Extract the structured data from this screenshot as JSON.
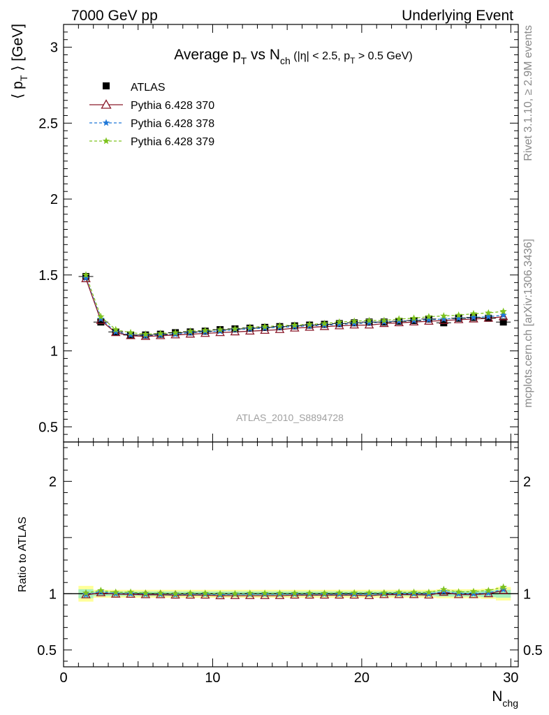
{
  "header": {
    "left": "7000 GeV pp",
    "right": "Underlying Event"
  },
  "side": {
    "rivet": "Rivet 3.1.10, ≥ 2.9M events",
    "mcplots": "mcplots.cern.ch [arXiv:1306.3436]"
  },
  "chart_data": [
    {
      "type": "scatter",
      "panel": "main",
      "title": {
        "main": "Average p",
        "main_sub": "T",
        "vs": " vs N",
        "vs_sub": "ch",
        "cut": " (|η| < 2.5, p",
        "cut_sub": "T",
        "cut_end": " > 0.5 GeV)"
      },
      "ylabel": {
        "pre": "⟨ p",
        "sub": "T",
        "post": " ⟩ [GeV]"
      },
      "xlim": [
        0,
        30.5
      ],
      "ylim": [
        0.4,
        3.15
      ],
      "yticks": [
        0.5,
        1,
        1.5,
        2,
        2.5,
        3
      ],
      "ytick_labels": [
        "0.5",
        "1",
        "1.5",
        "2",
        "2.5",
        "3"
      ],
      "watermark": "ATLAS_2010_S8894728",
      "x": [
        1.5,
        2.5,
        3.5,
        4.5,
        5.5,
        6.5,
        7.5,
        8.5,
        9.5,
        10.5,
        11.5,
        12.5,
        13.5,
        14.5,
        15.5,
        16.5,
        17.5,
        18.5,
        19.5,
        20.5,
        21.5,
        22.5,
        23.5,
        24.5,
        25.5,
        26.5,
        27.5,
        28.5,
        29.5
      ],
      "legend": {
        "position": "top-left",
        "entries": [
          "ATLAS",
          "Pythia 6.428 370",
          "Pythia 6.428 378",
          "Pythia 6.428 379"
        ]
      },
      "series": [
        {
          "name": "ATLAS",
          "color": "#000000",
          "marker": "square",
          "values": [
            1.49,
            1.19,
            1.125,
            1.105,
            1.105,
            1.11,
            1.12,
            1.125,
            1.13,
            1.14,
            1.145,
            1.15,
            1.155,
            1.16,
            1.165,
            1.17,
            1.175,
            1.18,
            1.185,
            1.19,
            1.19,
            1.195,
            1.2,
            1.21,
            1.185,
            1.215,
            1.22,
            1.215,
            1.19
          ]
        },
        {
          "name": "Pythia 6.428 370",
          "color": "#8b1a2b",
          "marker": "triangle",
          "dash": "",
          "values": [
            1.475,
            1.2,
            1.12,
            1.1,
            1.095,
            1.1,
            1.105,
            1.11,
            1.115,
            1.12,
            1.125,
            1.13,
            1.135,
            1.14,
            1.15,
            1.155,
            1.16,
            1.165,
            1.17,
            1.17,
            1.18,
            1.185,
            1.19,
            1.195,
            1.2,
            1.205,
            1.21,
            1.215,
            1.225
          ]
        },
        {
          "name": "Pythia 6.428 378",
          "color": "#1f78d8",
          "marker": "star",
          "dash": "4,3",
          "values": [
            1.48,
            1.21,
            1.125,
            1.105,
            1.1,
            1.105,
            1.11,
            1.12,
            1.125,
            1.13,
            1.14,
            1.145,
            1.15,
            1.155,
            1.16,
            1.165,
            1.17,
            1.175,
            1.18,
            1.185,
            1.19,
            1.195,
            1.2,
            1.205,
            1.21,
            1.215,
            1.22,
            1.225,
            1.235
          ]
        },
        {
          "name": "Pythia 6.428 379",
          "color": "#7dc21e",
          "marker": "star",
          "dash": "4,3",
          "values": [
            1.5,
            1.225,
            1.14,
            1.12,
            1.11,
            1.115,
            1.12,
            1.13,
            1.135,
            1.14,
            1.145,
            1.155,
            1.16,
            1.165,
            1.17,
            1.175,
            1.18,
            1.19,
            1.195,
            1.2,
            1.2,
            1.21,
            1.215,
            1.225,
            1.23,
            1.235,
            1.245,
            1.25,
            1.26
          ]
        }
      ]
    },
    {
      "type": "scatter",
      "panel": "ratio",
      "ylabel": "Ratio to ATLAS",
      "xlabel": {
        "pre": "N",
        "sub": "chg"
      },
      "xlim": [
        0,
        30.5
      ],
      "ylim": [
        0.35,
        2.35
      ],
      "xticks": [
        0,
        10,
        20,
        30
      ],
      "xtick_labels": [
        "0",
        "10",
        "20",
        "30"
      ],
      "yticks": [
        0.5,
        1,
        2
      ],
      "ytick_labels": [
        "0.5",
        "1",
        "2"
      ],
      "ytick_labels_right": [
        "0.5",
        "1",
        "2"
      ],
      "band_outer": [
        0.07,
        0.035,
        0.035,
        0.035,
        0.035,
        0.035,
        0.035,
        0.035,
        0.035,
        0.035,
        0.035,
        0.035,
        0.035,
        0.035,
        0.035,
        0.035,
        0.035,
        0.035,
        0.035,
        0.035,
        0.035,
        0.035,
        0.035,
        0.035,
        0.04,
        0.04,
        0.04,
        0.045,
        0.06
      ],
      "band_inner": [
        0.04,
        0.02,
        0.02,
        0.02,
        0.02,
        0.02,
        0.02,
        0.02,
        0.02,
        0.02,
        0.02,
        0.02,
        0.02,
        0.02,
        0.02,
        0.02,
        0.02,
        0.02,
        0.02,
        0.02,
        0.02,
        0.02,
        0.02,
        0.02,
        0.025,
        0.025,
        0.025,
        0.03,
        0.035
      ],
      "series": [
        {
          "name": "Pythia 6.428 370",
          "color": "#8b1a2b",
          "marker": "triangle",
          "dash": "",
          "values": [
            0.99,
            1.008,
            0.996,
            0.995,
            0.991,
            0.991,
            0.987,
            0.987,
            0.987,
            0.982,
            0.983,
            0.983,
            0.983,
            0.983,
            0.987,
            0.987,
            0.987,
            0.987,
            0.987,
            0.983,
            0.992,
            0.992,
            0.992,
            0.988,
            1.013,
            0.992,
            0.992,
            1.0,
            1.029
          ]
        },
        {
          "name": "Pythia 6.428 378",
          "color": "#1f78d8",
          "marker": "star",
          "dash": "4,3",
          "values": [
            0.993,
            1.017,
            1.0,
            1.0,
            0.995,
            0.995,
            0.991,
            0.996,
            0.996,
            0.991,
            0.996,
            0.996,
            0.996,
            0.996,
            0.996,
            0.996,
            0.996,
            0.996,
            0.996,
            0.996,
            1.0,
            1.0,
            1.0,
            0.996,
            1.021,
            1.0,
            1.0,
            1.008,
            1.038
          ]
        },
        {
          "name": "Pythia 6.428 379",
          "color": "#7dc21e",
          "marker": "star",
          "dash": "4,3",
          "values": [
            1.007,
            1.029,
            1.013,
            1.014,
            1.005,
            1.005,
            1.0,
            1.004,
            1.004,
            1.0,
            1.0,
            1.004,
            1.004,
            1.004,
            1.004,
            1.004,
            1.004,
            1.008,
            1.008,
            1.008,
            1.008,
            1.013,
            1.013,
            1.012,
            1.038,
            1.016,
            1.02,
            1.029,
            1.059
          ]
        }
      ]
    }
  ]
}
